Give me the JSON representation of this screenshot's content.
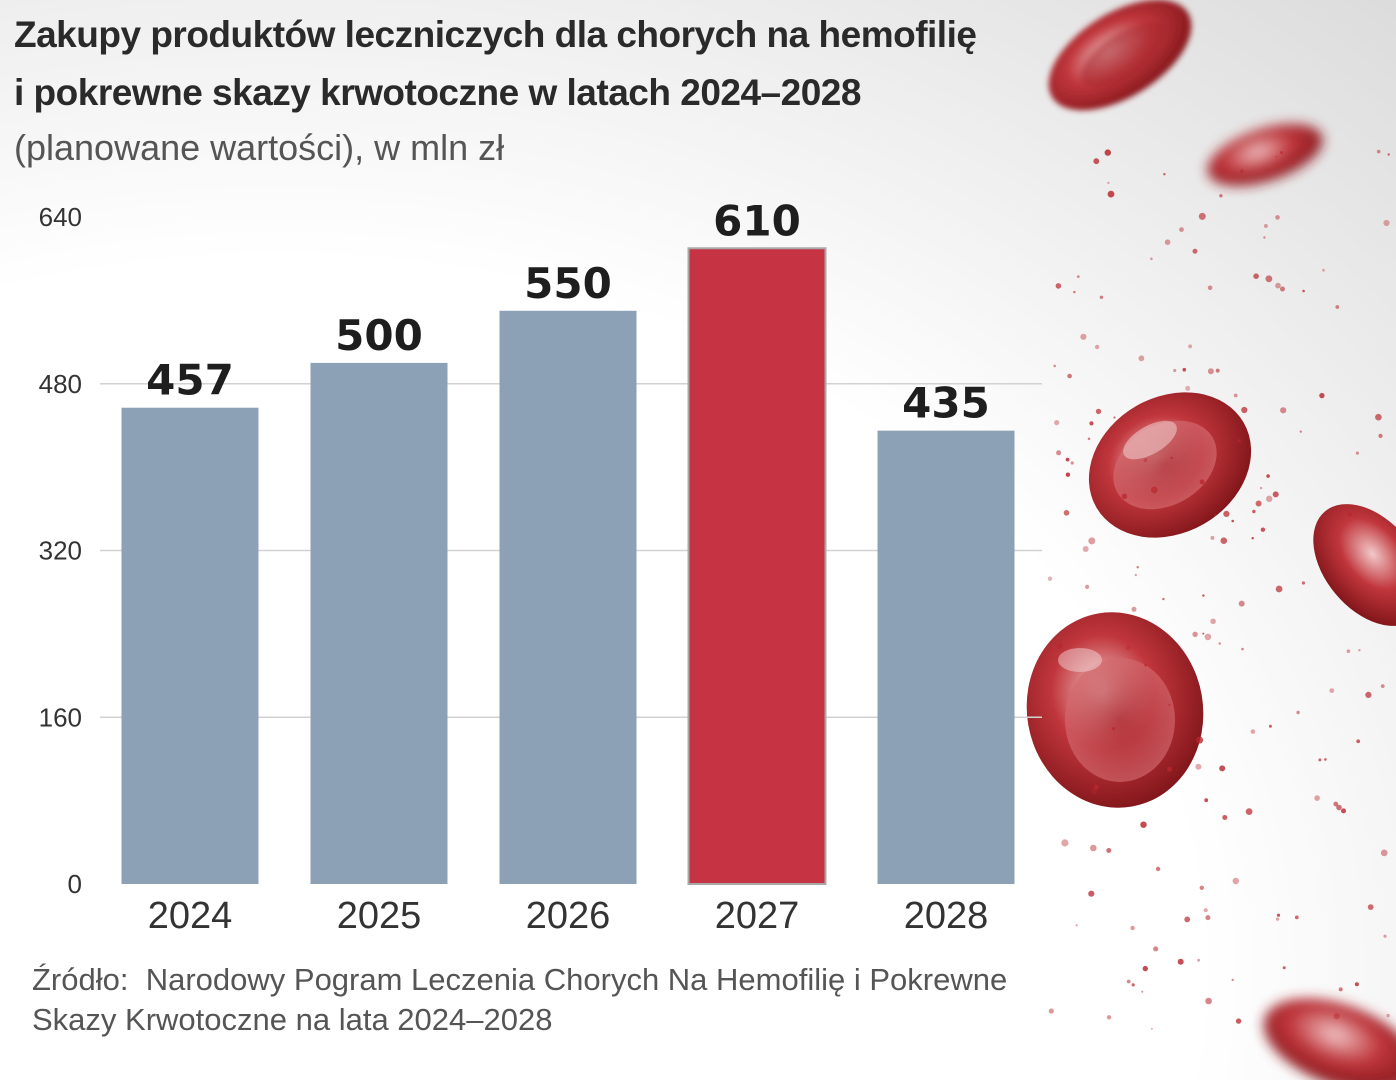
{
  "chart_data": {
    "type": "bar",
    "title": "Zakupy produktów leczniczych dla chorych na hemofilię i pokrewne skazy krwotoczne w latach 2024–2028",
    "title_line1": "Zakupy produktów leczniczych dla chorych na hemofilię",
    "title_line2": "i pokrewne skazy krwotoczne w latach 2024–2028",
    "subtitle": "(planowane wartości), w mln zł",
    "categories": [
      "2024",
      "2025",
      "2026",
      "2027",
      "2028"
    ],
    "values": [
      457,
      500,
      550,
      610,
      435
    ],
    "value_labels": [
      "457",
      "500",
      "550",
      "610",
      "435"
    ],
    "highlight_index": 3,
    "bar_color": "#8da1b6",
    "highlight_color": "#c63444",
    "ylim": [
      0,
      640
    ],
    "yticks": [
      0,
      160,
      320,
      480,
      640
    ],
    "ytick_labels": [
      "0",
      "160",
      "320",
      "480",
      "640"
    ],
    "grid": true,
    "xlabel": "",
    "ylabel": ""
  },
  "source": {
    "label": "Źródło:",
    "text": "Narodowy Pogram Leczenia Chorych Na Hemofilię i Pokrewne Skazy Krwotoczne na lata 2024–2028"
  }
}
